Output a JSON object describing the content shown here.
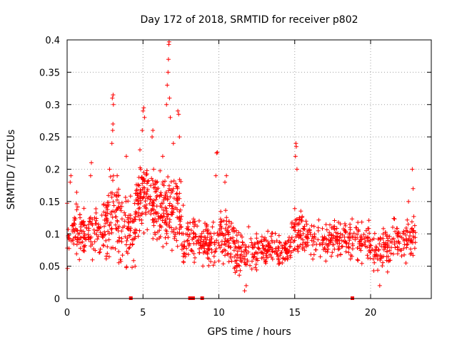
{
  "chart_data": {
    "type": "scatter",
    "title": "Day 172 of 2018, SRMTID for receiver p802",
    "xlabel": "GPS time / hours",
    "ylabel": "SRMTID / TECUs",
    "xlim": [
      0,
      24
    ],
    "ylim": [
      0,
      0.4
    ],
    "xticks": [
      0,
      5,
      10,
      15,
      20
    ],
    "xtick_labels": [
      "0",
      "5",
      "10",
      "15",
      "20"
    ],
    "yticks": [
      0,
      0.05,
      0.1,
      0.15,
      0.2,
      0.25,
      0.3,
      0.35,
      0.4
    ],
    "ytick_labels": [
      "0",
      "0.05",
      "0.1",
      "0.15",
      "0.2",
      "0.25",
      "0.3",
      "0.35",
      "0.4"
    ],
    "grid": true,
    "marker": "plus",
    "color": "#ff0000",
    "gap_marker_hours": [
      4.2,
      8.1,
      8.3,
      8.9,
      18.8
    ],
    "series": [
      {
        "name": "SRMTID",
        "description": "Dense scatter of SRMTID samples sampled from the observed value bands",
        "bands": [
          {
            "x0": 0.0,
            "x1": 1.0,
            "lo": 0.04,
            "hi": 0.17,
            "n": 60
          },
          {
            "x0": 1.0,
            "x1": 2.5,
            "lo": 0.05,
            "hi": 0.16,
            "n": 90
          },
          {
            "x0": 2.5,
            "x1": 3.5,
            "lo": 0.03,
            "hi": 0.22,
            "n": 80
          },
          {
            "x0": 3.5,
            "x1": 4.5,
            "lo": 0.03,
            "hi": 0.18,
            "n": 70
          },
          {
            "x0": 4.5,
            "x1": 5.5,
            "lo": 0.08,
            "hi": 0.24,
            "n": 90
          },
          {
            "x0": 5.5,
            "x1": 6.5,
            "lo": 0.06,
            "hi": 0.21,
            "n": 90
          },
          {
            "x0": 6.5,
            "x1": 7.5,
            "lo": 0.05,
            "hi": 0.22,
            "n": 90
          },
          {
            "x0": 7.5,
            "x1": 8.5,
            "lo": 0.04,
            "hi": 0.15,
            "n": 60
          },
          {
            "x0": 8.5,
            "x1": 10.0,
            "lo": 0.04,
            "hi": 0.13,
            "n": 90
          },
          {
            "x0": 10.0,
            "x1": 11.0,
            "lo": 0.04,
            "hi": 0.15,
            "n": 70
          },
          {
            "x0": 11.0,
            "x1": 12.5,
            "lo": 0.02,
            "hi": 0.12,
            "n": 90
          },
          {
            "x0": 12.5,
            "x1": 14.8,
            "lo": 0.04,
            "hi": 0.11,
            "n": 130
          },
          {
            "x0": 14.8,
            "x1": 15.5,
            "lo": 0.05,
            "hi": 0.16,
            "n": 50
          },
          {
            "x0": 15.5,
            "x1": 18.5,
            "lo": 0.05,
            "hi": 0.13,
            "n": 150
          },
          {
            "x0": 18.5,
            "x1": 20.0,
            "lo": 0.04,
            "hi": 0.14,
            "n": 80
          },
          {
            "x0": 20.0,
            "x1": 21.5,
            "lo": 0.03,
            "hi": 0.12,
            "n": 80
          },
          {
            "x0": 21.5,
            "x1": 23.0,
            "lo": 0.05,
            "hi": 0.14,
            "n": 80
          }
        ],
        "peaks": [
          [
            0.2,
            0.18
          ],
          [
            0.25,
            0.19
          ],
          [
            1.6,
            0.21
          ],
          [
            1.55,
            0.19
          ],
          [
            2.8,
            0.2
          ],
          [
            2.95,
            0.24
          ],
          [
            3.0,
            0.26
          ],
          [
            3.02,
            0.27
          ],
          [
            3.05,
            0.3
          ],
          [
            2.98,
            0.31
          ],
          [
            3.03,
            0.315
          ],
          [
            3.3,
            0.19
          ],
          [
            3.9,
            0.22
          ],
          [
            4.8,
            0.23
          ],
          [
            4.95,
            0.26
          ],
          [
            5.0,
            0.29
          ],
          [
            5.05,
            0.295
          ],
          [
            5.1,
            0.28
          ],
          [
            5.6,
            0.25
          ],
          [
            5.65,
            0.26
          ],
          [
            5.7,
            0.2
          ],
          [
            6.3,
            0.22
          ],
          [
            6.55,
            0.3
          ],
          [
            6.6,
            0.33
          ],
          [
            6.65,
            0.35
          ],
          [
            6.68,
            0.37
          ],
          [
            6.7,
            0.393
          ],
          [
            6.72,
            0.397
          ],
          [
            6.75,
            0.31
          ],
          [
            6.8,
            0.28
          ],
          [
            7.3,
            0.29
          ],
          [
            7.35,
            0.285
          ],
          [
            7.4,
            0.25
          ],
          [
            7.0,
            0.24
          ],
          [
            9.8,
            0.19
          ],
          [
            9.85,
            0.225
          ],
          [
            9.9,
            0.226
          ],
          [
            10.4,
            0.18
          ],
          [
            10.5,
            0.19
          ],
          [
            15.05,
            0.22
          ],
          [
            15.08,
            0.24
          ],
          [
            15.1,
            0.235
          ],
          [
            15.15,
            0.2
          ],
          [
            22.75,
            0.2
          ],
          [
            22.8,
            0.17
          ],
          [
            22.5,
            0.15
          ],
          [
            11.7,
            0.012
          ],
          [
            11.8,
            0.02
          ],
          [
            20.6,
            0.02
          ]
        ]
      }
    ]
  }
}
